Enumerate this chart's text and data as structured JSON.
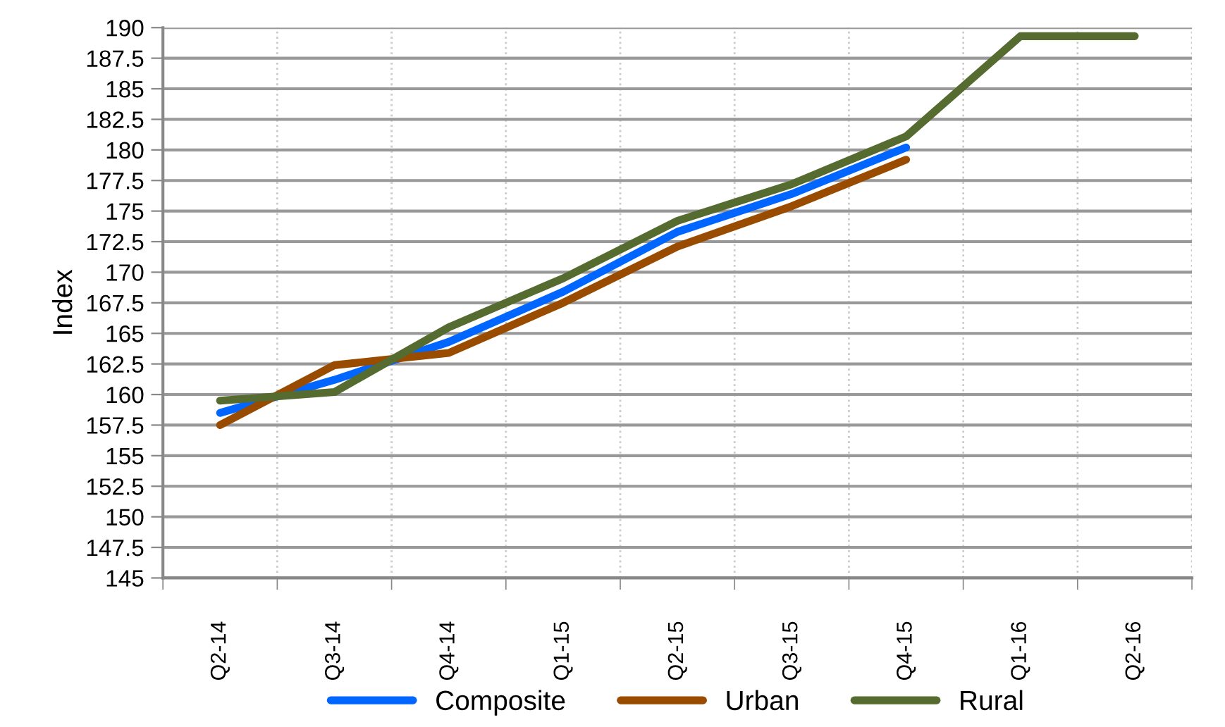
{
  "chart_data": {
    "type": "line",
    "ylabel": "Index",
    "categories": [
      "Q2-14",
      "Q3-14",
      "Q4-14",
      "Q1-15",
      "Q2-15",
      "Q3-15",
      "Q4-15",
      "Q1-16",
      "Q2-16"
    ],
    "series": [
      {
        "name": "Composite",
        "color": "#0066ff",
        "values": [
          158.5,
          161.2,
          164.3,
          168.4,
          173.3,
          176.4,
          180.2,
          null,
          null
        ]
      },
      {
        "name": "Urban",
        "color": "#994c00",
        "values": [
          157.5,
          162.4,
          163.4,
          167.5,
          172.1,
          175.4,
          179.2,
          null,
          null
        ]
      },
      {
        "name": "Rural",
        "color": "#556b2f",
        "values": [
          159.5,
          160.2,
          165.5,
          169.5,
          174.2,
          177.2,
          181.1,
          189.3,
          189.3
        ]
      }
    ],
    "ylim": [
      145,
      190
    ],
    "yticks": [
      145,
      147.5,
      150,
      152.5,
      155,
      157.5,
      160,
      162.5,
      165,
      167.5,
      170,
      172.5,
      175,
      177.5,
      180,
      182.5,
      185,
      187.5,
      190
    ],
    "grid": true,
    "legend": "bottom",
    "marker": "none",
    "line_style": "solid"
  }
}
